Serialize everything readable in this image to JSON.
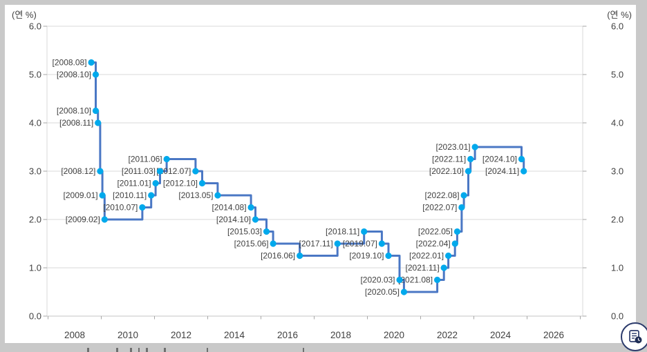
{
  "page": {
    "background_color": "#c9c9c9",
    "card_color": "#ffffff"
  },
  "chart_data": {
    "type": "line",
    "subtype": "step",
    "title": "",
    "unit_label_left": "(연 %)",
    "unit_label_right": "(연 %)",
    "xlabel": "",
    "ylabel": "",
    "ylim": [
      0.0,
      6.0
    ],
    "y_ticks": [
      0.0,
      1.0,
      2.0,
      3.0,
      4.0,
      5.0,
      6.0
    ],
    "y_tick_format": "0.0",
    "x_tick_years": [
      2008,
      2010,
      2012,
      2014,
      2016,
      2018,
      2020,
      2022,
      2024,
      2026
    ],
    "x_range_years": [
      2007,
      2027
    ],
    "grid": "horizontal-only",
    "legend": "none",
    "dual_axis": true,
    "series_name": "",
    "points": [
      {
        "label": "[2008.08]",
        "date": "2008.08",
        "rate": 5.25
      },
      {
        "label": "[2008.10]",
        "date": "2008.10",
        "rate": 5.0
      },
      {
        "label": "[2008.10]",
        "date": "2008.10",
        "rate": 4.25
      },
      {
        "label": "[2008.11]",
        "date": "2008.11",
        "rate": 4.0
      },
      {
        "label": "[2008.12]",
        "date": "2008.12",
        "rate": 3.0
      },
      {
        "label": "[2009.01]",
        "date": "2009.01",
        "rate": 2.5
      },
      {
        "label": "[2009.02]",
        "date": "2009.02",
        "rate": 2.0
      },
      {
        "label": "[2010.07]",
        "date": "2010.07",
        "rate": 2.25
      },
      {
        "label": "[2010.11]",
        "date": "2010.11",
        "rate": 2.5
      },
      {
        "label": "[2011.01]",
        "date": "2011.01",
        "rate": 2.75
      },
      {
        "label": "[2011.03]",
        "date": "2011.03",
        "rate": 3.0
      },
      {
        "label": "[2011.06]",
        "date": "2011.06",
        "rate": 3.25
      },
      {
        "label": "[2012.07]",
        "date": "2012.07",
        "rate": 3.0
      },
      {
        "label": "[2012.10]",
        "date": "2012.10",
        "rate": 2.75
      },
      {
        "label": "[2013.05]",
        "date": "2013.05",
        "rate": 2.5
      },
      {
        "label": "[2014.08]",
        "date": "2014.08",
        "rate": 2.25
      },
      {
        "label": "[2014.10]",
        "date": "2014.10",
        "rate": 2.0
      },
      {
        "label": "[2015.03]",
        "date": "2015.03",
        "rate": 1.75
      },
      {
        "label": "[2015.06]",
        "date": "2015.06",
        "rate": 1.5
      },
      {
        "label": "[2016.06]",
        "date": "2016.06",
        "rate": 1.25
      },
      {
        "label": "[2017.11]",
        "date": "2017.11",
        "rate": 1.5
      },
      {
        "label": "[2018.11]",
        "date": "2018.11",
        "rate": 1.75
      },
      {
        "label": "[2019.07]",
        "date": "2019.07",
        "rate": 1.5
      },
      {
        "label": "[2019.10]",
        "date": "2019.10",
        "rate": 1.25
      },
      {
        "label": "[2020.03]",
        "date": "2020.03",
        "rate": 0.75
      },
      {
        "label": "[2020.05]",
        "date": "2020.05",
        "rate": 0.5
      },
      {
        "label": "[2021.08]",
        "date": "2021.08",
        "rate": 0.75
      },
      {
        "label": "[2021.11]",
        "date": "2021.11",
        "rate": 1.0
      },
      {
        "label": "[2022.01]",
        "date": "2022.01",
        "rate": 1.25
      },
      {
        "label": "[2022.04]",
        "date": "2022.04",
        "rate": 1.5
      },
      {
        "label": "[2022.05]",
        "date": "2022.05",
        "rate": 1.75
      },
      {
        "label": "[2022.07]",
        "date": "2022.07",
        "rate": 2.25
      },
      {
        "label": "[2022.08]",
        "date": "2022.08",
        "rate": 2.5
      },
      {
        "label": "[2022.10]",
        "date": "2022.10",
        "rate": 3.0
      },
      {
        "label": "[2022.11]",
        "date": "2022.11",
        "rate": 3.25
      },
      {
        "label": "[2023.01]",
        "date": "2023.01",
        "rate": 3.5
      },
      {
        "label": "[2024.10]",
        "date": "2024.10",
        "rate": 3.25
      },
      {
        "label": "[2024.11]",
        "date": "2024.11",
        "rate": 3.0
      }
    ]
  },
  "colors": {
    "line": "#4a77c4",
    "marker": "#00a9ec",
    "grid": "#d9d9d9",
    "axis_line": "#c6c6c6",
    "tick": "#a6a6a6",
    "axis_text": "#404040",
    "label_text": "#3f3f3f",
    "fab_border": "#2b3a6b",
    "fab_glyph": "#2b3a6b"
  },
  "fab": {
    "icon": "document-clock-icon"
  }
}
